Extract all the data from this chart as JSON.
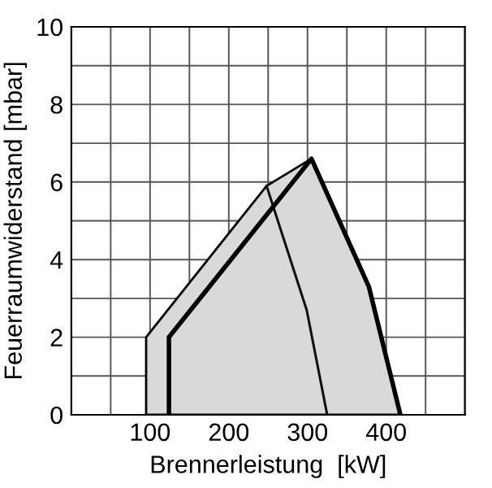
{
  "chart_data": {
    "type": "line",
    "xlabel": "Brennerleistung  [kW]",
    "ylabel": "Feuerraumwiderstand [mbar]",
    "xlim": [
      0,
      500
    ],
    "ylim": [
      0,
      10
    ],
    "xticks": [
      {
        "value": 0,
        "label": null
      },
      {
        "value": 50,
        "label": null
      },
      100,
      {
        "value": 150,
        "label": null
      },
      200,
      {
        "value": 250,
        "label": null
      },
      300,
      {
        "value": 350,
        "label": null
      },
      400,
      {
        "value": 450,
        "label": null
      },
      {
        "value": 500,
        "label": null
      }
    ],
    "yticks": [
      0,
      {
        "value": 1,
        "label": null
      },
      2,
      {
        "value": 3,
        "label": null
      },
      4,
      {
        "value": 5,
        "label": null
      },
      6,
      {
        "value": 7,
        "label": null
      },
      8,
      {
        "value": 9,
        "label": null
      },
      10
    ],
    "grid": true,
    "series": [
      {
        "type": "area",
        "color": "#d9d9d9",
        "x": [
          95,
          95,
          248,
          305,
          378,
          418
        ],
        "values": [
          0,
          2,
          5.9,
          6.6,
          3.3,
          0
        ]
      },
      {
        "color": "#111111",
        "x": [
          248,
          299,
          325
        ],
        "values": [
          5.9,
          2.7,
          0
        ]
      },
      {
        "type": "line",
        "color": "#000000",
        "x": [
          124,
          124,
          305,
          378,
          418
        ],
        "values": [
          0,
          2,
          6.6,
          3.3,
          0
        ]
      }
    ]
  }
}
